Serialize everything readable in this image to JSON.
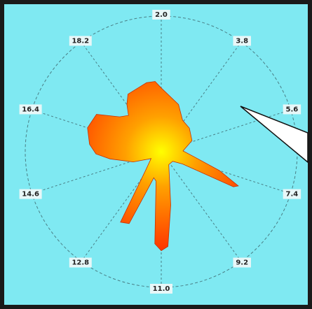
{
  "colors": {
    "frame": "#1a1a1a",
    "plot_background": "#7fe9f2",
    "grid": "#4a7f86",
    "label_box": "#e8f7f8",
    "fill_center": "#ffff00",
    "fill_mid": "#ffa000",
    "fill_edge": "#ff3000",
    "callout": "#ffffff"
  },
  "chart_data": {
    "type": "polar-area",
    "title": "",
    "direction_labels": [
      "2.0",
      "3.8",
      "5.6",
      "7.4",
      "9.2",
      "11.0",
      "12.8",
      "14.6",
      "16.4",
      "18.2"
    ],
    "rlim": [
      0,
      1
    ],
    "grid": true,
    "series": [
      {
        "angles_deg": [
          0,
          20,
          34,
          50,
          70,
          88,
          100,
          108,
          114,
          116,
          120,
          130,
          150,
          170,
          176,
          180,
          184,
          190,
          196,
          200,
          204,
          210,
          220,
          236,
          250,
          262,
          268,
          276,
          288,
          300,
          310,
          318,
          324,
          330,
          340,
          348,
          355
        ],
        "values": [
          0.47,
          0.37,
          0.28,
          0.27,
          0.24,
          0.16,
          0.26,
          0.45,
          0.62,
          0.59,
          0.18,
          0.11,
          0.11,
          0.4,
          0.7,
          0.73,
          0.68,
          0.22,
          0.2,
          0.3,
          0.58,
          0.6,
          0.18,
          0.09,
          0.22,
          0.38,
          0.48,
          0.53,
          0.57,
          0.55,
          0.4,
          0.36,
          0.43,
          0.49,
          0.5,
          0.52,
          0.52
        ]
      }
    ]
  }
}
